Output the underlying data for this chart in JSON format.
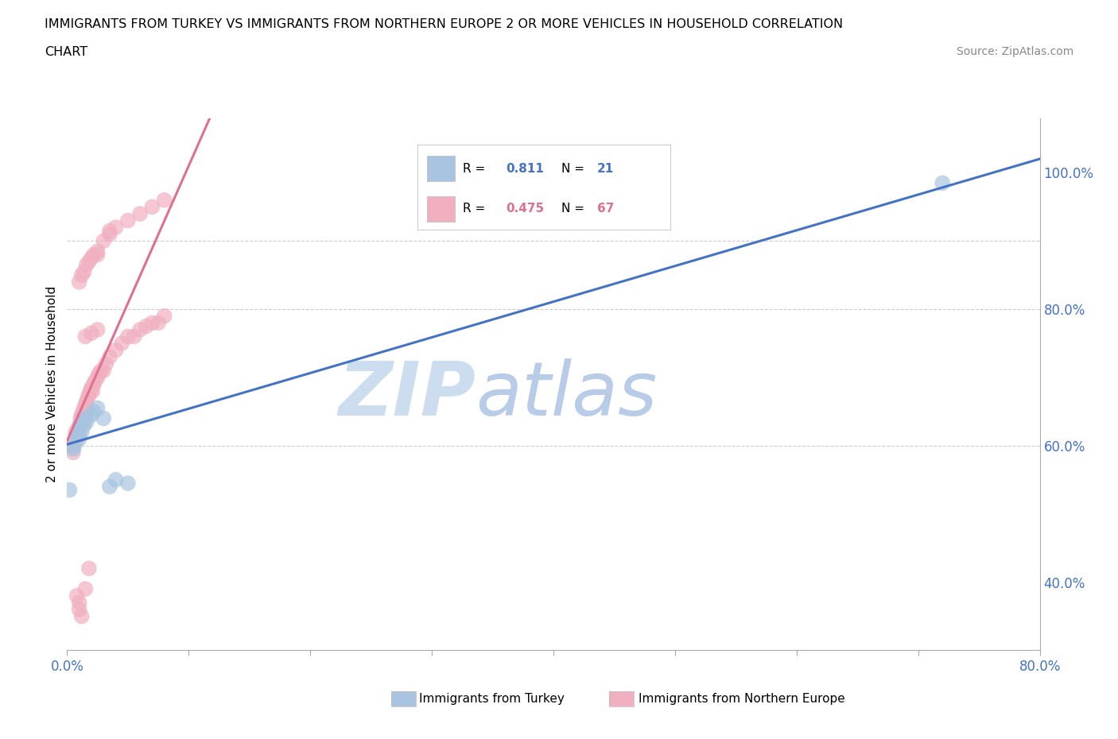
{
  "title_line1": "IMMIGRANTS FROM TURKEY VS IMMIGRANTS FROM NORTHERN EUROPE 2 OR MORE VEHICLES IN HOUSEHOLD CORRELATION",
  "title_line2": "CHART",
  "source_text": "Source: ZipAtlas.com",
  "xmin": 0.0,
  "xmax": 0.8,
  "ymin": 0.3,
  "ymax": 1.08,
  "hlines_y": [
    0.9,
    0.8,
    0.6
  ],
  "blue_color": "#a8c4e0",
  "pink_color": "#f0b0c0",
  "blue_line_color": "#4472c4",
  "pink_line_color": "#e07090",
  "watermark_color": "#ccddf0",
  "r_blue": 0.811,
  "n_blue": 21,
  "r_pink": 0.475,
  "n_pink": 67,
  "blue_scatter_x": [
    0.002,
    0.005,
    0.006,
    0.008,
    0.009,
    0.01,
    0.01,
    0.011,
    0.012,
    0.013,
    0.014,
    0.015,
    0.016,
    0.02,
    0.022,
    0.025,
    0.03,
    0.035,
    0.04,
    0.05,
    0.72
  ],
  "blue_scatter_y": [
    0.535,
    0.595,
    0.6,
    0.615,
    0.62,
    0.61,
    0.625,
    0.63,
    0.62,
    0.635,
    0.63,
    0.64,
    0.635,
    0.645,
    0.65,
    0.655,
    0.64,
    0.54,
    0.55,
    0.545,
    0.985
  ],
  "pink_scatter_x": [
    0.003,
    0.005,
    0.006,
    0.007,
    0.008,
    0.009,
    0.01,
    0.01,
    0.011,
    0.012,
    0.012,
    0.013,
    0.013,
    0.014,
    0.014,
    0.015,
    0.015,
    0.016,
    0.016,
    0.017,
    0.018,
    0.019,
    0.02,
    0.021,
    0.022,
    0.023,
    0.025,
    0.026,
    0.028,
    0.03,
    0.032,
    0.035,
    0.04,
    0.045,
    0.05,
    0.055,
    0.06,
    0.065,
    0.07,
    0.075,
    0.08,
    0.01,
    0.012,
    0.014,
    0.016,
    0.018,
    0.02,
    0.022,
    0.025,
    0.03,
    0.035,
    0.04,
    0.05,
    0.06,
    0.07,
    0.08,
    0.025,
    0.035,
    0.015,
    0.02,
    0.025,
    0.018,
    0.015,
    0.01,
    0.008,
    0.012,
    0.01
  ],
  "pink_scatter_y": [
    0.6,
    0.59,
    0.605,
    0.62,
    0.61,
    0.625,
    0.63,
    0.615,
    0.64,
    0.635,
    0.645,
    0.65,
    0.64,
    0.655,
    0.645,
    0.66,
    0.65,
    0.665,
    0.655,
    0.67,
    0.675,
    0.68,
    0.685,
    0.68,
    0.69,
    0.695,
    0.7,
    0.705,
    0.71,
    0.71,
    0.72,
    0.73,
    0.74,
    0.75,
    0.76,
    0.76,
    0.77,
    0.775,
    0.78,
    0.78,
    0.79,
    0.84,
    0.85,
    0.855,
    0.865,
    0.87,
    0.875,
    0.88,
    0.885,
    0.9,
    0.91,
    0.92,
    0.93,
    0.94,
    0.95,
    0.96,
    0.88,
    0.915,
    0.76,
    0.765,
    0.77,
    0.42,
    0.39,
    0.37,
    0.38,
    0.35,
    0.36
  ],
  "legend_label_blue": "Immigrants from Turkey",
  "legend_label_pink": "Immigrants from Northern Europe",
  "axis_label_color": "#4472c4",
  "tick_color": "#aaaaaa",
  "grid_color": "#cccccc",
  "ylabel": "2 or more Vehicles in Household"
}
